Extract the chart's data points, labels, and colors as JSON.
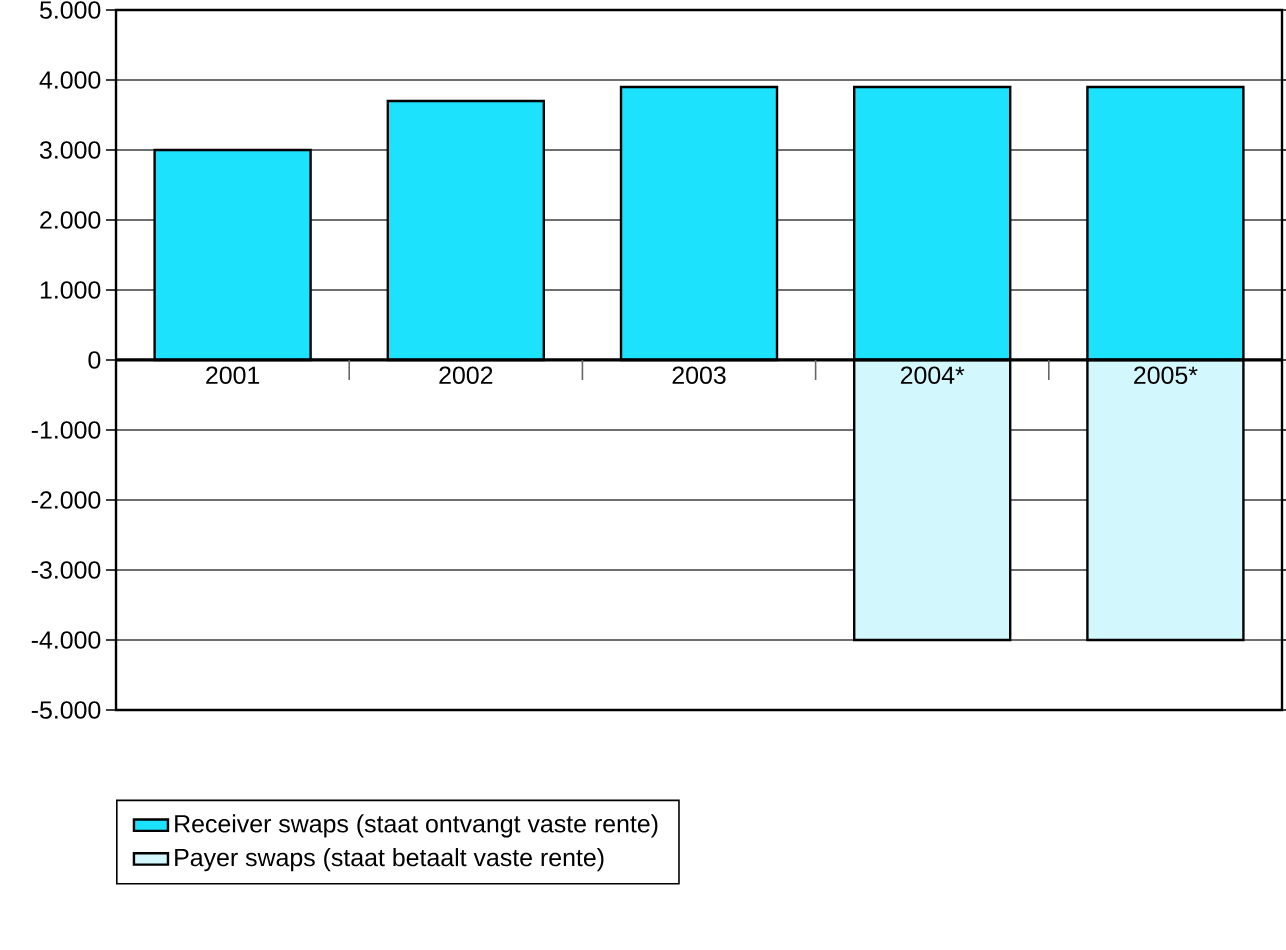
{
  "chart_data": {
    "type": "bar",
    "stacked": true,
    "categories": [
      "2001",
      "2002",
      "2003",
      "2004*",
      "2005*"
    ],
    "series": [
      {
        "name": "Receiver swaps (staat ontvangt vaste rente)",
        "color": "#1de2fd",
        "values": [
          3000,
          3700,
          3900,
          3900,
          3900
        ]
      },
      {
        "name": "Payer swaps (staat betaalt vaste rente)",
        "color": "#d2f8fd",
        "values": [
          null,
          null,
          null,
          -4000,
          -4000
        ]
      }
    ],
    "ylim": [
      -5000,
      5000
    ],
    "yticks": [
      {
        "value": -5000,
        "label": "-5.000"
      },
      {
        "value": -4000,
        "label": "-4.000"
      },
      {
        "value": -3000,
        "label": "-3.000"
      },
      {
        "value": -2000,
        "label": "-2.000"
      },
      {
        "value": -1000,
        "label": "-1.000"
      },
      {
        "value": 0,
        "label": "0"
      },
      {
        "value": 1000,
        "label": "1.000"
      },
      {
        "value": 2000,
        "label": "2.000"
      },
      {
        "value": 3000,
        "label": "3.000"
      },
      {
        "value": 4000,
        "label": "4.000"
      },
      {
        "value": 5000,
        "label": "5.000"
      }
    ],
    "grid": "y",
    "legend": "bottom"
  }
}
